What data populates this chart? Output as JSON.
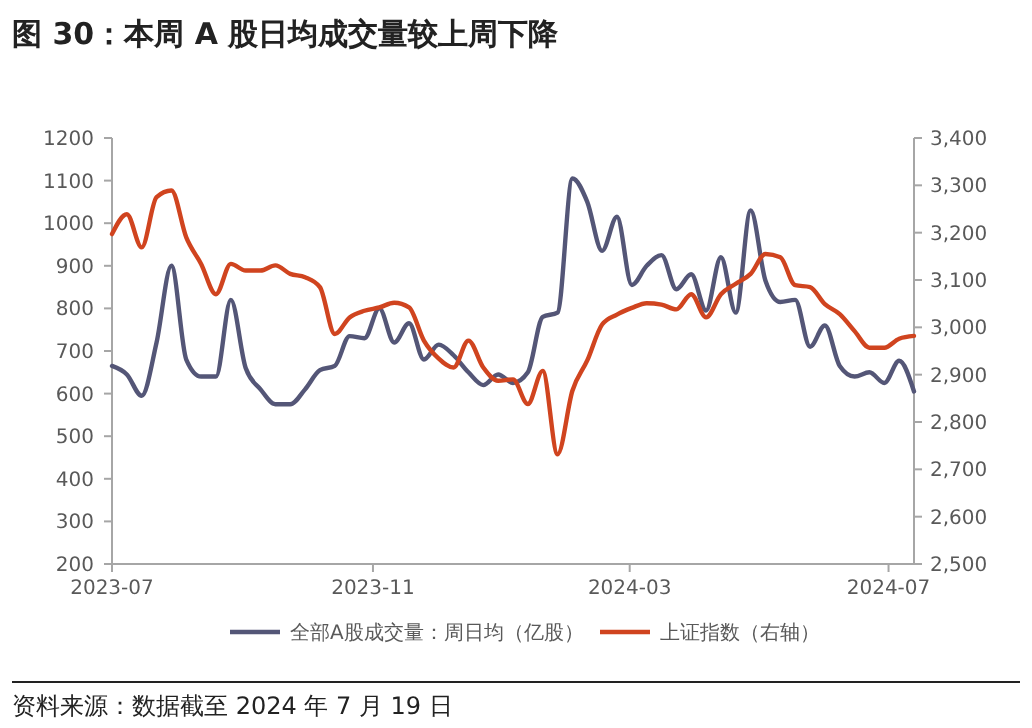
{
  "chart_data": {
    "type": "line",
    "title": "图 30：本周 A 股日均成交量较上周下降",
    "annotations": [
      "资料来源：数据截至 2024 年 7 月 19 日"
    ],
    "x": [
      "2023-07-07",
      "2023-07-14",
      "2023-07-21",
      "2023-07-28",
      "2023-08-04",
      "2023-08-11",
      "2023-08-18",
      "2023-08-25",
      "2023-09-01",
      "2023-09-08",
      "2023-09-15",
      "2023-09-22",
      "2023-09-29",
      "2023-10-06",
      "2023-10-13",
      "2023-10-20",
      "2023-10-27",
      "2023-11-03",
      "2023-11-10",
      "2023-11-17",
      "2023-11-24",
      "2023-12-01",
      "2023-12-08",
      "2023-12-15",
      "2023-12-22",
      "2023-12-29",
      "2024-01-05",
      "2024-01-12",
      "2024-01-19",
      "2024-01-26",
      "2024-02-02",
      "2024-02-09",
      "2024-02-16",
      "2024-02-23",
      "2024-03-01",
      "2024-03-08",
      "2024-03-15",
      "2024-03-22",
      "2024-03-29",
      "2024-04-05",
      "2024-04-12",
      "2024-04-19",
      "2024-04-26",
      "2024-05-03",
      "2024-05-10",
      "2024-05-17",
      "2024-05-24",
      "2024-05-31",
      "2024-06-07",
      "2024-06-14",
      "2024-06-21",
      "2024-06-28",
      "2024-07-05",
      "2024-07-12",
      "2024-07-19"
    ],
    "series": [
      {
        "name": "全部A股成交量：周日均（亿股）",
        "color": "#545677",
        "values": [
          665,
          645,
          595,
          720,
          900,
          680,
          640,
          640,
          820,
          660,
          610,
          575,
          575,
          610,
          655,
          665,
          735,
          730,
          800,
          720,
          765,
          680,
          715,
          690,
          650,
          620,
          645,
          625,
          650,
          780,
          790,
          1105,
          1050,
          935,
          1015,
          855,
          900,
          925,
          845,
          880,
          795,
          920,
          790,
          1030,
          865,
          815,
          820,
          710,
          760,
          665,
          640,
          650,
          625,
          677,
          605
        ]
      },
      {
        "name": "上证指数（右轴）",
        "color": "#d0441f",
        "axis": "y2",
        "values": [
          3197,
          3239,
          3169,
          3275,
          3289,
          3190,
          3134,
          3070,
          3134,
          3120,
          3120,
          3131,
          3113,
          3106,
          3085,
          2986,
          3021,
          3035,
          3042,
          3052,
          3042,
          2972,
          2934,
          2915,
          2972,
          2915,
          2887,
          2890,
          2838,
          2908,
          2732,
          2866,
          2930,
          3006,
          3027,
          3041,
          3051,
          3048,
          3038,
          3070,
          3021,
          3070,
          3092,
          3113,
          3155,
          3148,
          3089,
          3085,
          3049,
          3028,
          2992,
          2957,
          2957,
          2976,
          2982
        ]
      }
    ],
    "xlim": [
      "2023-07-07",
      "2024-07-19"
    ],
    "xticks": [
      {
        "value": "2023-07-07",
        "label": "2023-07"
      },
      {
        "value": "2023-11-07",
        "label": "2023-11"
      },
      {
        "value": "2024-03-07",
        "label": "2024-03"
      },
      {
        "value": "2024-07-07",
        "label": "2024-07"
      }
    ],
    "ylim": [
      200,
      1200
    ],
    "yticks": [
      200,
      300,
      400,
      500,
      600,
      700,
      800,
      900,
      1000,
      1100,
      1200
    ],
    "y2lim": [
      2500,
      3400
    ],
    "y2ticks": [
      {
        "value": 2500,
        "label": "2,500"
      },
      {
        "value": 2600,
        "label": "2,600"
      },
      {
        "value": 2700,
        "label": "2,700"
      },
      {
        "value": 2800,
        "label": "2,800"
      },
      {
        "value": 2900,
        "label": "2,900"
      },
      {
        "value": 3000,
        "label": "3,000"
      },
      {
        "value": 3100,
        "label": "3,100"
      },
      {
        "value": 3200,
        "label": "3,200"
      },
      {
        "value": 3300,
        "label": "3,300"
      },
      {
        "value": 3400,
        "label": "3,400"
      }
    ],
    "legend": "bottom"
  }
}
